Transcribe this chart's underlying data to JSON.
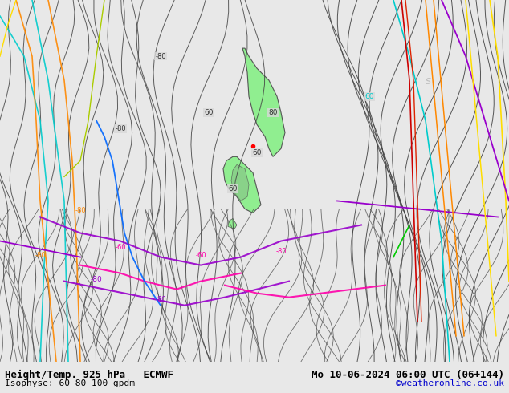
{
  "title_left": "Height/Temp. 925 hPa   ECMWF",
  "title_right": "Mo 10-06-2024 06:00 UTC (06+144)",
  "subtitle_left": "Isophyse: 60 80 100 gpdm",
  "subtitle_right": "©weatheronline.co.uk",
  "bg_color": "#e8e8e8",
  "map_bg": "#d8d8d8",
  "land_color": "#90ee90",
  "bottom_bar_color": "#ffffff",
  "bottom_text_color": "#000000",
  "credit_color": "#0000cc",
  "font_size_title": 9,
  "font_size_label": 8,
  "fig_width": 6.34,
  "fig_height": 4.9
}
